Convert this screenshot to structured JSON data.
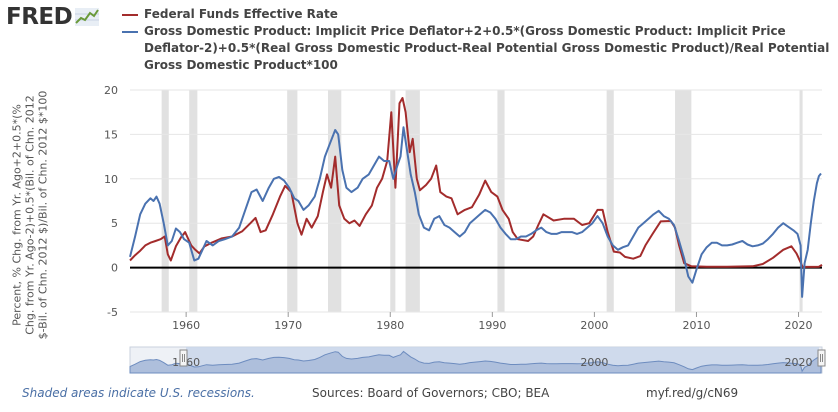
{
  "logo": {
    "text": "FRED",
    "icon": "fred-chart-icon"
  },
  "legend": [
    {
      "label": "Federal Funds Effective Rate",
      "color": "#a32c2c"
    },
    {
      "label": "Gross Domestic Product: Implicit Price Deflator+2+0.5*(Gross Domestic Product: Implicit Price Deflator-2)+0.5*(Real Gross Domestic Product-Real Potential Gross Domestic Product)/Real Potential Gross Domestic Product*100",
      "color": "#4a72b0"
    }
  ],
  "footer": {
    "note": "Shaded areas indicate U.S. recessions.",
    "source": "Sources: Board of Governors; CBO; BEA",
    "url": "myf.red/g/cN69"
  },
  "chart_data": {
    "type": "line",
    "ylabel": "Percent, % Chg. from Yr. Ago+2+0.5*(% Chg. from Yr. Ago-2)+0.5*(Bil. of Chn. 2012 $-Bil. of Chn. 2012 $)/Bil. of Chn. 2012 $*100",
    "xlim": [
      1954.5,
      2022.3
    ],
    "ylim": [
      -5,
      20
    ],
    "yticks": [
      -5,
      0,
      5,
      10,
      15,
      20
    ],
    "xticks": [
      1960,
      1970,
      1980,
      1990,
      2000,
      2010,
      2020
    ],
    "navigator_ticks": [
      1960,
      2000,
      2020
    ],
    "grid": "horizontal",
    "recessions": [
      [
        1957.6,
        1958.3
      ],
      [
        1960.3,
        1961.1
      ],
      [
        1969.9,
        1970.9
      ],
      [
        1973.9,
        1975.2
      ],
      [
        1980.0,
        1980.5
      ],
      [
        1981.5,
        1982.9
      ],
      [
        1990.5,
        1991.2
      ],
      [
        2001.2,
        2001.9
      ],
      [
        2007.9,
        2009.5
      ],
      [
        2020.1,
        2020.4
      ]
    ],
    "series": [
      {
        "name": "Federal Funds Effective Rate",
        "color": "#a32c2c",
        "points": [
          [
            1954.5,
            0.8
          ],
          [
            1955.0,
            1.4
          ],
          [
            1955.5,
            1.9
          ],
          [
            1956.0,
            2.5
          ],
          [
            1956.5,
            2.8
          ],
          [
            1957.0,
            3.0
          ],
          [
            1957.5,
            3.2
          ],
          [
            1957.9,
            3.5
          ],
          [
            1958.2,
            1.5
          ],
          [
            1958.5,
            0.8
          ],
          [
            1959.0,
            2.4
          ],
          [
            1959.5,
            3.4
          ],
          [
            1959.9,
            4.0
          ],
          [
            1960.5,
            2.5
          ],
          [
            1960.9,
            2.0
          ],
          [
            1961.3,
            1.6
          ],
          [
            1961.8,
            2.4
          ],
          [
            1962.5,
            2.8
          ],
          [
            1963.5,
            3.3
          ],
          [
            1964.5,
            3.5
          ],
          [
            1965.5,
            4.1
          ],
          [
            1966.3,
            5.0
          ],
          [
            1966.8,
            5.6
          ],
          [
            1967.3,
            4.0
          ],
          [
            1967.8,
            4.2
          ],
          [
            1968.5,
            6.0
          ],
          [
            1969.2,
            8.0
          ],
          [
            1969.7,
            9.2
          ],
          [
            1970.3,
            8.5
          ],
          [
            1970.9,
            5.0
          ],
          [
            1971.3,
            3.7
          ],
          [
            1971.8,
            5.5
          ],
          [
            1972.3,
            4.5
          ],
          [
            1972.9,
            5.8
          ],
          [
            1973.4,
            8.5
          ],
          [
            1973.8,
            10.5
          ],
          [
            1974.2,
            9.0
          ],
          [
            1974.6,
            12.5
          ],
          [
            1975.0,
            7.0
          ],
          [
            1975.5,
            5.5
          ],
          [
            1976.0,
            5.0
          ],
          [
            1976.5,
            5.3
          ],
          [
            1977.0,
            4.7
          ],
          [
            1977.6,
            6.0
          ],
          [
            1978.2,
            7.0
          ],
          [
            1978.7,
            9.0
          ],
          [
            1979.2,
            10.0
          ],
          [
            1979.7,
            12.0
          ],
          [
            1980.1,
            17.5
          ],
          [
            1980.5,
            9.0
          ],
          [
            1980.9,
            18.5
          ],
          [
            1981.2,
            19.1
          ],
          [
            1981.5,
            17.5
          ],
          [
            1981.9,
            13.0
          ],
          [
            1982.2,
            14.5
          ],
          [
            1982.6,
            10.0
          ],
          [
            1982.9,
            8.7
          ],
          [
            1983.5,
            9.3
          ],
          [
            1984.0,
            10.0
          ],
          [
            1984.5,
            11.5
          ],
          [
            1984.9,
            8.5
          ],
          [
            1985.5,
            8.0
          ],
          [
            1986.0,
            7.8
          ],
          [
            1986.6,
            6.0
          ],
          [
            1987.3,
            6.5
          ],
          [
            1988.0,
            6.8
          ],
          [
            1988.7,
            8.2
          ],
          [
            1989.3,
            9.8
          ],
          [
            1989.9,
            8.5
          ],
          [
            1990.5,
            8.0
          ],
          [
            1991.0,
            6.5
          ],
          [
            1991.6,
            5.5
          ],
          [
            1992.0,
            4.0
          ],
          [
            1992.5,
            3.2
          ],
          [
            1993.5,
            3.0
          ],
          [
            1994.0,
            3.5
          ],
          [
            1994.5,
            4.8
          ],
          [
            1995.0,
            6.0
          ],
          [
            1996.0,
            5.3
          ],
          [
            1997.0,
            5.5
          ],
          [
            1998.0,
            5.5
          ],
          [
            1998.8,
            4.8
          ],
          [
            1999.5,
            5.0
          ],
          [
            2000.3,
            6.5
          ],
          [
            2000.8,
            6.5
          ],
          [
            2001.3,
            4.0
          ],
          [
            2001.9,
            1.8
          ],
          [
            2002.5,
            1.7
          ],
          [
            2003.0,
            1.2
          ],
          [
            2003.8,
            1.0
          ],
          [
            2004.5,
            1.3
          ],
          [
            2005.0,
            2.5
          ],
          [
            2005.7,
            3.8
          ],
          [
            2006.5,
            5.2
          ],
          [
            2007.5,
            5.25
          ],
          [
            2007.9,
            4.5
          ],
          [
            2008.3,
            2.5
          ],
          [
            2008.8,
            0.5
          ],
          [
            2009.5,
            0.15
          ],
          [
            2011.0,
            0.1
          ],
          [
            2013.0,
            0.1
          ],
          [
            2015.5,
            0.15
          ],
          [
            2016.5,
            0.4
          ],
          [
            2017.5,
            1.1
          ],
          [
            2018.5,
            2.0
          ],
          [
            2019.3,
            2.4
          ],
          [
            2019.8,
            1.6
          ],
          [
            2020.2,
            0.6
          ],
          [
            2020.4,
            0.08
          ],
          [
            2021.5,
            0.08
          ],
          [
            2022.0,
            0.1
          ],
          [
            2022.3,
            0.3
          ]
        ]
      },
      {
        "name": "Gross Domestic Product: Implicit Price Deflator+2+0.5*(Gross Domestic Product: Implicit Price Deflator-2)+0.5*(Real Gross Domestic Product-Real Potential Gross Domestic Product)/Real Potential Gross Domestic Product*100",
        "color": "#4a72b0",
        "points": [
          [
            1954.5,
            1.2
          ],
          [
            1955.0,
            3.5
          ],
          [
            1955.5,
            6.0
          ],
          [
            1956.0,
            7.2
          ],
          [
            1956.5,
            7.8
          ],
          [
            1956.8,
            7.5
          ],
          [
            1957.1,
            8.0
          ],
          [
            1957.4,
            7.2
          ],
          [
            1957.8,
            5.0
          ],
          [
            1958.2,
            2.5
          ],
          [
            1958.6,
            3.0
          ],
          [
            1959.0,
            4.4
          ],
          [
            1959.4,
            4.0
          ],
          [
            1959.8,
            3.2
          ],
          [
            1960.3,
            2.8
          ],
          [
            1960.8,
            0.8
          ],
          [
            1961.2,
            1.0
          ],
          [
            1961.6,
            2.0
          ],
          [
            1962.0,
            3.0
          ],
          [
            1962.6,
            2.5
          ],
          [
            1963.2,
            3.0
          ],
          [
            1963.8,
            3.2
          ],
          [
            1964.5,
            3.5
          ],
          [
            1965.2,
            4.5
          ],
          [
            1965.8,
            6.5
          ],
          [
            1966.4,
            8.5
          ],
          [
            1966.9,
            8.8
          ],
          [
            1967.5,
            7.5
          ],
          [
            1968.1,
            9.0
          ],
          [
            1968.6,
            10.0
          ],
          [
            1969.1,
            10.2
          ],
          [
            1969.6,
            9.8
          ],
          [
            1970.1,
            9.0
          ],
          [
            1970.6,
            7.8
          ],
          [
            1971.0,
            7.5
          ],
          [
            1971.5,
            6.5
          ],
          [
            1972.0,
            7.0
          ],
          [
            1972.6,
            8.0
          ],
          [
            1973.1,
            10.0
          ],
          [
            1973.6,
            12.5
          ],
          [
            1974.1,
            14.0
          ],
          [
            1974.6,
            15.5
          ],
          [
            1974.9,
            15.0
          ],
          [
            1975.3,
            11.0
          ],
          [
            1975.7,
            9.0
          ],
          [
            1976.2,
            8.5
          ],
          [
            1976.8,
            9.0
          ],
          [
            1977.3,
            10.0
          ],
          [
            1977.9,
            10.5
          ],
          [
            1978.4,
            11.5
          ],
          [
            1978.9,
            12.5
          ],
          [
            1979.4,
            12.0
          ],
          [
            1979.9,
            12.0
          ],
          [
            1980.3,
            10.0
          ],
          [
            1980.7,
            11.5
          ],
          [
            1981.0,
            12.5
          ],
          [
            1981.3,
            15.8
          ],
          [
            1981.6,
            13.5
          ],
          [
            1982.0,
            10.5
          ],
          [
            1982.4,
            8.5
          ],
          [
            1982.8,
            6.0
          ],
          [
            1983.3,
            4.5
          ],
          [
            1983.8,
            4.2
          ],
          [
            1984.3,
            5.5
          ],
          [
            1984.8,
            5.8
          ],
          [
            1985.3,
            4.8
          ],
          [
            1985.8,
            4.5
          ],
          [
            1986.3,
            4.0
          ],
          [
            1986.8,
            3.5
          ],
          [
            1987.3,
            4.0
          ],
          [
            1987.8,
            5.0
          ],
          [
            1988.3,
            5.5
          ],
          [
            1988.8,
            6.0
          ],
          [
            1989.3,
            6.5
          ],
          [
            1989.8,
            6.2
          ],
          [
            1990.3,
            5.5
          ],
          [
            1990.8,
            4.5
          ],
          [
            1991.3,
            3.8
          ],
          [
            1991.8,
            3.2
          ],
          [
            1992.3,
            3.2
          ],
          [
            1992.8,
            3.5
          ],
          [
            1993.3,
            3.5
          ],
          [
            1993.8,
            3.8
          ],
          [
            1994.3,
            4.2
          ],
          [
            1994.8,
            4.5
          ],
          [
            1995.3,
            4.0
          ],
          [
            1995.8,
            3.8
          ],
          [
            1996.3,
            3.8
          ],
          [
            1996.8,
            4.0
          ],
          [
            1997.3,
            4.0
          ],
          [
            1997.8,
            4.0
          ],
          [
            1998.3,
            3.8
          ],
          [
            1998.8,
            4.0
          ],
          [
            1999.3,
            4.5
          ],
          [
            1999.8,
            5.0
          ],
          [
            2000.3,
            5.8
          ],
          [
            2000.8,
            5.0
          ],
          [
            2001.3,
            3.5
          ],
          [
            2001.8,
            2.5
          ],
          [
            2002.3,
            2.0
          ],
          [
            2002.8,
            2.3
          ],
          [
            2003.3,
            2.5
          ],
          [
            2003.8,
            3.5
          ],
          [
            2004.3,
            4.5
          ],
          [
            2004.8,
            5.0
          ],
          [
            2005.3,
            5.5
          ],
          [
            2005.8,
            6.0
          ],
          [
            2006.3,
            6.4
          ],
          [
            2006.8,
            5.8
          ],
          [
            2007.3,
            5.5
          ],
          [
            2007.8,
            4.8
          ],
          [
            2008.3,
            3.0
          ],
          [
            2008.8,
            1.0
          ],
          [
            2009.2,
            -1.0
          ],
          [
            2009.6,
            -1.7
          ],
          [
            2010.0,
            -0.2
          ],
          [
            2010.5,
            1.5
          ],
          [
            2011.0,
            2.3
          ],
          [
            2011.5,
            2.8
          ],
          [
            2012.0,
            2.8
          ],
          [
            2012.5,
            2.5
          ],
          [
            2013.0,
            2.5
          ],
          [
            2013.5,
            2.6
          ],
          [
            2014.0,
            2.8
          ],
          [
            2014.5,
            3.0
          ],
          [
            2015.0,
            2.6
          ],
          [
            2015.5,
            2.4
          ],
          [
            2016.0,
            2.5
          ],
          [
            2016.5,
            2.7
          ],
          [
            2017.0,
            3.2
          ],
          [
            2017.5,
            3.8
          ],
          [
            2018.0,
            4.5
          ],
          [
            2018.5,
            5.0
          ],
          [
            2019.0,
            4.6
          ],
          [
            2019.5,
            4.2
          ],
          [
            2019.9,
            3.8
          ],
          [
            2020.2,
            2.5
          ],
          [
            2020.35,
            -3.3
          ],
          [
            2020.6,
            0.5
          ],
          [
            2020.9,
            2.0
          ],
          [
            2021.2,
            5.0
          ],
          [
            2021.5,
            7.5
          ],
          [
            2021.8,
            9.5
          ],
          [
            2022.0,
            10.3
          ],
          [
            2022.2,
            10.6
          ]
        ]
      }
    ]
  }
}
